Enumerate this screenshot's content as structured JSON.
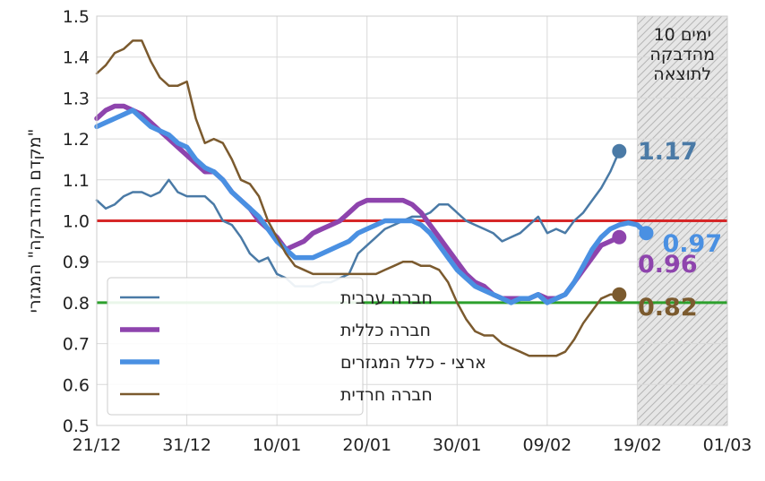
{
  "chart_data": {
    "type": "line",
    "ylabel": "\"מקדם ההדבקה\" המגזרי",
    "ylim": [
      0.5,
      1.5
    ],
    "yticks": [
      "0.5",
      "0.6",
      "0.7",
      "0.8",
      "0.9",
      "1.0",
      "1.1",
      "1.2",
      "1.3",
      "1.4",
      "1.5"
    ],
    "xlim": [
      "2020-12-21",
      "2021-03-01"
    ],
    "xticks": [
      {
        "date": "2020-12-21",
        "label": "21/12"
      },
      {
        "date": "2020-12-31",
        "label": "31/12"
      },
      {
        "date": "2021-01-10",
        "label": "10/01"
      },
      {
        "date": "2021-01-20",
        "label": "20/01"
      },
      {
        "date": "2021-01-30",
        "label": "30/01"
      },
      {
        "date": "2021-02-09",
        "label": "09/02"
      },
      {
        "date": "2021-02-19",
        "label": "19/02"
      },
      {
        "date": "2021-03-01",
        "label": "01/03"
      }
    ],
    "grid": true,
    "legend_position": "bottom-left",
    "reference_lines": [
      {
        "y": 1.0,
        "color": "#d62728"
      },
      {
        "y": 0.8,
        "color": "#2ca02c"
      }
    ],
    "shaded_region": {
      "from": "2021-02-19",
      "to": "2021-03-01",
      "label": "10 ימים\nמהדבקה\nלתוצאה"
    },
    "series": [
      {
        "name": "חברה ערבית",
        "color": "#4a7aa6",
        "width": 2.5,
        "end_label": "1.17",
        "x": [
          "2020-12-21",
          "2020-12-22",
          "2020-12-23",
          "2020-12-24",
          "2020-12-25",
          "2020-12-26",
          "2020-12-27",
          "2020-12-28",
          "2020-12-29",
          "2020-12-30",
          "2020-12-31",
          "2021-01-01",
          "2021-01-02",
          "2021-01-03",
          "2021-01-04",
          "2021-01-05",
          "2021-01-06",
          "2021-01-07",
          "2021-01-08",
          "2021-01-09",
          "2021-01-10",
          "2021-01-11",
          "2021-01-12",
          "2021-01-13",
          "2021-01-14",
          "2021-01-15",
          "2021-01-16",
          "2021-01-17",
          "2021-01-18",
          "2021-01-19",
          "2021-01-20",
          "2021-01-21",
          "2021-01-22",
          "2021-01-23",
          "2021-01-24",
          "2021-01-25",
          "2021-01-26",
          "2021-01-27",
          "2021-01-28",
          "2021-01-29",
          "2021-01-30",
          "2021-01-31",
          "2021-02-01",
          "2021-02-02",
          "2021-02-03",
          "2021-02-04",
          "2021-02-05",
          "2021-02-06",
          "2021-02-07",
          "2021-02-08",
          "2021-02-09",
          "2021-02-10",
          "2021-02-11",
          "2021-02-12",
          "2021-02-13",
          "2021-02-14",
          "2021-02-15",
          "2021-02-16",
          "2021-02-17"
        ],
        "values": [
          1.05,
          1.03,
          1.04,
          1.06,
          1.07,
          1.07,
          1.06,
          1.07,
          1.1,
          1.07,
          1.06,
          1.06,
          1.06,
          1.04,
          1.0,
          0.99,
          0.96,
          0.92,
          0.9,
          0.91,
          0.87,
          0.86,
          0.84,
          0.84,
          0.84,
          0.85,
          0.85,
          0.86,
          0.87,
          0.92,
          0.94,
          0.96,
          0.98,
          0.99,
          1.0,
          1.01,
          1.01,
          1.02,
          1.04,
          1.04,
          1.02,
          1.0,
          0.99,
          0.98,
          0.97,
          0.95,
          0.96,
          0.97,
          0.99,
          1.01,
          0.97,
          0.98,
          0.97,
          1.0,
          1.02,
          1.05,
          1.08,
          1.12,
          1.17
        ]
      },
      {
        "name": "חברה כללית",
        "color": "#8e44ad",
        "width": 5.5,
        "end_label": "0.96",
        "x": [
          "2020-12-21",
          "2020-12-22",
          "2020-12-23",
          "2020-12-24",
          "2020-12-25",
          "2020-12-26",
          "2020-12-27",
          "2020-12-28",
          "2020-12-29",
          "2020-12-30",
          "2020-12-31",
          "2021-01-01",
          "2021-01-02",
          "2021-01-03",
          "2021-01-04",
          "2021-01-05",
          "2021-01-06",
          "2021-01-07",
          "2021-01-08",
          "2021-01-09",
          "2021-01-10",
          "2021-01-11",
          "2021-01-12",
          "2021-01-13",
          "2021-01-14",
          "2021-01-15",
          "2021-01-16",
          "2021-01-17",
          "2021-01-18",
          "2021-01-19",
          "2021-01-20",
          "2021-01-21",
          "2021-01-22",
          "2021-01-23",
          "2021-01-24",
          "2021-01-25",
          "2021-01-26",
          "2021-01-27",
          "2021-01-28",
          "2021-01-29",
          "2021-01-30",
          "2021-01-31",
          "2021-02-01",
          "2021-02-02",
          "2021-02-03",
          "2021-02-04",
          "2021-02-05",
          "2021-02-06",
          "2021-02-07",
          "2021-02-08",
          "2021-02-09",
          "2021-02-10",
          "2021-02-11",
          "2021-02-12",
          "2021-02-13",
          "2021-02-14",
          "2021-02-15",
          "2021-02-16",
          "2021-02-17"
        ],
        "values": [
          1.25,
          1.27,
          1.28,
          1.28,
          1.27,
          1.26,
          1.24,
          1.22,
          1.2,
          1.18,
          1.16,
          1.14,
          1.12,
          1.12,
          1.1,
          1.07,
          1.05,
          1.03,
          1.0,
          0.98,
          0.96,
          0.93,
          0.94,
          0.95,
          0.97,
          0.98,
          0.99,
          1.0,
          1.02,
          1.04,
          1.05,
          1.05,
          1.05,
          1.05,
          1.05,
          1.04,
          1.02,
          0.99,
          0.96,
          0.93,
          0.9,
          0.87,
          0.85,
          0.84,
          0.82,
          0.81,
          0.81,
          0.81,
          0.81,
          0.82,
          0.81,
          0.81,
          0.82,
          0.85,
          0.88,
          0.91,
          0.94,
          0.95,
          0.96
        ]
      },
      {
        "name": "ארצי - כלל המגזרים",
        "color": "#4a90e2",
        "width": 5.5,
        "end_label": "0.97",
        "x": [
          "2020-12-21",
          "2020-12-22",
          "2020-12-23",
          "2020-12-24",
          "2020-12-25",
          "2020-12-26",
          "2020-12-27",
          "2020-12-28",
          "2020-12-29",
          "2020-12-30",
          "2020-12-31",
          "2021-01-01",
          "2021-01-02",
          "2021-01-03",
          "2021-01-04",
          "2021-01-05",
          "2021-01-06",
          "2021-01-07",
          "2021-01-08",
          "2021-01-09",
          "2021-01-10",
          "2021-01-11",
          "2021-01-12",
          "2021-01-13",
          "2021-01-14",
          "2021-01-15",
          "2021-01-16",
          "2021-01-17",
          "2021-01-18",
          "2021-01-19",
          "2021-01-20",
          "2021-01-21",
          "2021-01-22",
          "2021-01-23",
          "2021-01-24",
          "2021-01-25",
          "2021-01-26",
          "2021-01-27",
          "2021-01-28",
          "2021-01-29",
          "2021-01-30",
          "2021-01-31",
          "2021-02-01",
          "2021-02-02",
          "2021-02-03",
          "2021-02-04",
          "2021-02-05",
          "2021-02-06",
          "2021-02-07",
          "2021-02-08",
          "2021-02-09",
          "2021-02-10",
          "2021-02-11",
          "2021-02-12",
          "2021-02-13",
          "2021-02-14",
          "2021-02-15",
          "2021-02-16",
          "2021-02-17",
          "2021-02-18",
          "2021-02-19",
          "2021-02-20"
        ],
        "values": [
          1.23,
          1.24,
          1.25,
          1.26,
          1.27,
          1.25,
          1.23,
          1.22,
          1.21,
          1.19,
          1.18,
          1.15,
          1.13,
          1.12,
          1.1,
          1.07,
          1.05,
          1.03,
          1.01,
          0.98,
          0.95,
          0.93,
          0.91,
          0.91,
          0.91,
          0.92,
          0.93,
          0.94,
          0.95,
          0.97,
          0.98,
          0.99,
          1.0,
          1.0,
          1.0,
          1.0,
          0.99,
          0.97,
          0.94,
          0.91,
          0.88,
          0.86,
          0.84,
          0.83,
          0.82,
          0.81,
          0.8,
          0.81,
          0.81,
          0.82,
          0.8,
          0.81,
          0.82,
          0.85,
          0.89,
          0.93,
          0.96,
          0.98,
          0.99,
          0.995,
          0.99,
          0.97
        ]
      },
      {
        "name": "חברה חרדית",
        "color": "#7b5a2e",
        "width": 2.5,
        "end_label": "0.82",
        "x": [
          "2020-12-21",
          "2020-12-22",
          "2020-12-23",
          "2020-12-24",
          "2020-12-25",
          "2020-12-26",
          "2020-12-27",
          "2020-12-28",
          "2020-12-29",
          "2020-12-30",
          "2020-12-31",
          "2021-01-01",
          "2021-01-02",
          "2021-01-03",
          "2021-01-04",
          "2021-01-05",
          "2021-01-06",
          "2021-01-07",
          "2021-01-08",
          "2021-01-09",
          "2021-01-10",
          "2021-01-11",
          "2021-01-12",
          "2021-01-13",
          "2021-01-14",
          "2021-01-15",
          "2021-01-16",
          "2021-01-17",
          "2021-01-18",
          "2021-01-19",
          "2021-01-20",
          "2021-01-21",
          "2021-01-22",
          "2021-01-23",
          "2021-01-24",
          "2021-01-25",
          "2021-01-26",
          "2021-01-27",
          "2021-01-28",
          "2021-01-29",
          "2021-01-30",
          "2021-01-31",
          "2021-02-01",
          "2021-02-02",
          "2021-02-03",
          "2021-02-04",
          "2021-02-05",
          "2021-02-06",
          "2021-02-07",
          "2021-02-08",
          "2021-02-09",
          "2021-02-10",
          "2021-02-11",
          "2021-02-12",
          "2021-02-13",
          "2021-02-14",
          "2021-02-15",
          "2021-02-16",
          "2021-02-17"
        ],
        "values": [
          1.36,
          1.38,
          1.41,
          1.42,
          1.44,
          1.44,
          1.39,
          1.35,
          1.33,
          1.33,
          1.34,
          1.25,
          1.19,
          1.2,
          1.19,
          1.15,
          1.1,
          1.09,
          1.06,
          1.0,
          0.96,
          0.92,
          0.89,
          0.88,
          0.87,
          0.87,
          0.87,
          0.87,
          0.87,
          0.87,
          0.87,
          0.87,
          0.88,
          0.89,
          0.9,
          0.9,
          0.89,
          0.89,
          0.88,
          0.85,
          0.8,
          0.76,
          0.73,
          0.72,
          0.72,
          0.7,
          0.69,
          0.68,
          0.67,
          0.67,
          0.67,
          0.67,
          0.68,
          0.71,
          0.75,
          0.78,
          0.81,
          0.82,
          0.82
        ]
      }
    ]
  }
}
